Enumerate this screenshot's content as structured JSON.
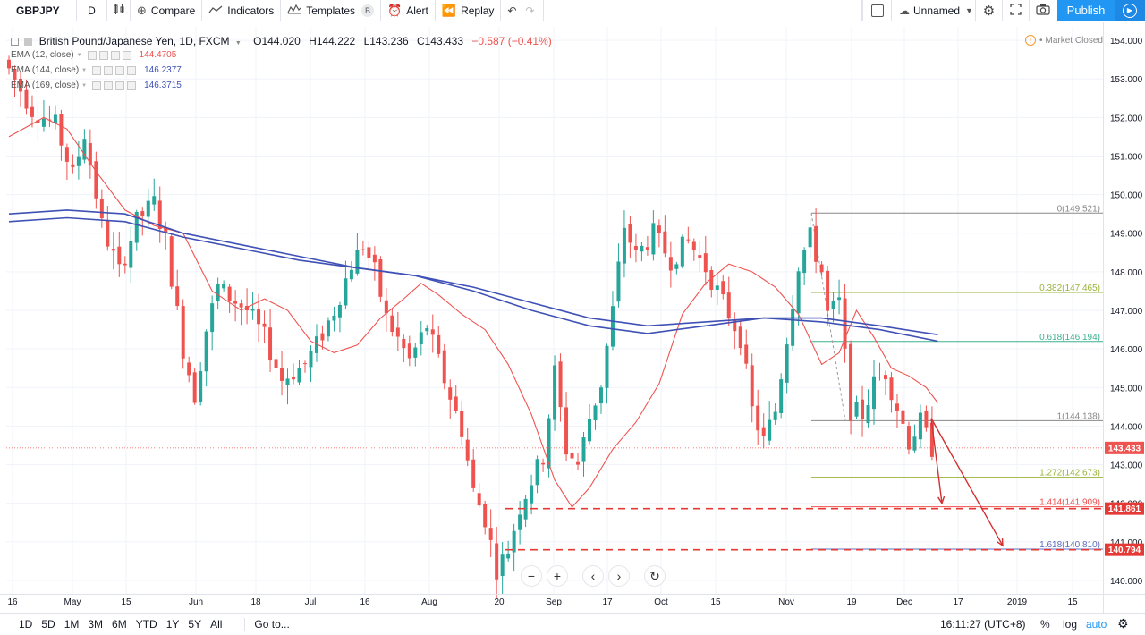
{
  "toolbar": {
    "symbol": "GBPJPY",
    "interval": "D",
    "compare": "Compare",
    "indicators": "Indicators",
    "templates": "Templates",
    "templates_badge": "B",
    "alert": "Alert",
    "replay": "Replay",
    "layout_name": "Unnamed",
    "publish": "Publish"
  },
  "legend": {
    "title": "British Pound/Japanese Yen, 1D, FXCM",
    "open": "O144.020",
    "high": "H144.222",
    "low": "L143.236",
    "close": "C143.433",
    "change": "−0.587 (−0.41%)",
    "market_status": "Market Closed"
  },
  "indicators": [
    {
      "label": "EMA (12, close)",
      "value": "144.4705",
      "color": "#ef5350"
    },
    {
      "label": "EMA (144, close)",
      "value": "146.2377",
      "color": "#3f51b5"
    },
    {
      "label": "EMA (169, close)",
      "value": "146.3715",
      "color": "#3f51b5"
    }
  ],
  "chart_data": {
    "type": "line",
    "symbol": "GBPJPY",
    "timeframe": "1D",
    "y_ticks": [
      "154.000",
      "153.000",
      "152.000",
      "151.000",
      "150.000",
      "149.000",
      "148.000",
      "147.000",
      "146.000",
      "145.000",
      "144.000",
      "143.000",
      "142.000",
      "141.000",
      "140.000"
    ],
    "ylim": [
      139.65,
      154.35
    ],
    "x_ticks": [
      "16",
      "May",
      "15",
      "Jun",
      "18",
      "Jul",
      "16",
      "Aug",
      "20",
      "Sep",
      "17",
      "Oct",
      "15",
      "Nov",
      "19",
      "Dec",
      "17",
      "2019",
      "15"
    ],
    "series": [
      {
        "name": "EMA (12, close)",
        "color": "#ef5350",
        "values": [
          [
            0,
            151.5
          ],
          [
            6,
            152.0
          ],
          [
            10,
            151.7
          ],
          [
            15,
            150.6
          ],
          [
            20,
            149.6
          ],
          [
            25,
            149.2
          ],
          [
            30,
            149.0
          ],
          [
            35,
            147.5
          ],
          [
            40,
            147.0
          ],
          [
            44,
            147.3
          ],
          [
            48,
            147.0
          ],
          [
            52,
            146.2
          ],
          [
            56,
            145.9
          ],
          [
            60,
            146.1
          ],
          [
            64,
            146.8
          ],
          [
            68,
            147.3
          ],
          [
            71,
            147.7
          ],
          [
            74,
            147.4
          ],
          [
            78,
            146.9
          ],
          [
            82,
            146.5
          ],
          [
            86,
            145.6
          ],
          [
            90,
            144.3
          ],
          [
            94,
            142.6
          ],
          [
            97,
            141.9
          ],
          [
            100,
            142.4
          ],
          [
            104,
            143.4
          ],
          [
            108,
            144.1
          ],
          [
            112,
            145.1
          ],
          [
            116,
            146.9
          ],
          [
            120,
            147.7
          ],
          [
            124,
            148.2
          ],
          [
            128,
            148.0
          ],
          [
            132,
            147.6
          ],
          [
            136,
            146.9
          ],
          [
            140,
            145.6
          ],
          [
            143,
            145.9
          ],
          [
            146,
            147.0
          ],
          [
            149,
            146.3
          ],
          [
            152,
            145.5
          ],
          [
            155,
            145.3
          ],
          [
            158,
            145.0
          ],
          [
            160,
            144.6
          ]
        ]
      },
      {
        "name": "EMA (144, close)",
        "color": "#3f51b5",
        "values": [
          [
            0,
            149.5
          ],
          [
            10,
            149.6
          ],
          [
            20,
            149.5
          ],
          [
            30,
            149.0
          ],
          [
            40,
            148.7
          ],
          [
            50,
            148.4
          ],
          [
            60,
            148.1
          ],
          [
            70,
            147.9
          ],
          [
            80,
            147.5
          ],
          [
            90,
            147.0
          ],
          [
            100,
            146.6
          ],
          [
            110,
            146.4
          ],
          [
            120,
            146.6
          ],
          [
            130,
            146.8
          ],
          [
            140,
            146.7
          ],
          [
            150,
            146.5
          ],
          [
            160,
            146.2
          ]
        ]
      },
      {
        "name": "EMA (169, close)",
        "color": "#3f51b5",
        "values": [
          [
            0,
            149.3
          ],
          [
            10,
            149.4
          ],
          [
            20,
            149.3
          ],
          [
            30,
            148.9
          ],
          [
            40,
            148.6
          ],
          [
            50,
            148.3
          ],
          [
            60,
            148.1
          ],
          [
            70,
            147.9
          ],
          [
            80,
            147.6
          ],
          [
            90,
            147.2
          ],
          [
            100,
            146.8
          ],
          [
            110,
            146.6
          ],
          [
            120,
            146.7
          ],
          [
            130,
            146.8
          ],
          [
            140,
            146.8
          ],
          [
            150,
            146.6
          ],
          [
            160,
            146.37
          ]
        ]
      }
    ],
    "fibonacci": [
      {
        "label": "0(149.521)",
        "level": 149.521,
        "color": "#888888"
      },
      {
        "label": "0.382(147.465)",
        "level": 147.465,
        "color": "#9ab33a"
      },
      {
        "label": "0.618(146.194)",
        "level": 146.194,
        "color": "#3bb08e"
      },
      {
        "label": "1(144.138)",
        "level": 144.138,
        "color": "#888888"
      },
      {
        "label": "1.272(142.673)",
        "level": 142.673,
        "color": "#9ab33a"
      },
      {
        "label": "1.414(141.909)",
        "level": 141.909,
        "color": "#ef5350"
      },
      {
        "label": "1.618(140.810)",
        "level": 140.81,
        "color": "#5c6bc0"
      }
    ],
    "price_labels": [
      {
        "text": "143.433",
        "value": 143.433,
        "color": "#ef5350"
      },
      {
        "text": "141.861",
        "value": 141.861,
        "color": "#e53935"
      },
      {
        "text": "140.794",
        "value": 140.794,
        "color": "#e53935"
      }
    ],
    "last_price": 143.433,
    "support_lines": [
      141.861,
      140.794
    ]
  },
  "bottom": {
    "ranges": [
      "1D",
      "5D",
      "1M",
      "3M",
      "6M",
      "YTD",
      "1Y",
      "5Y",
      "All"
    ],
    "goto": "Go to...",
    "time": "16:11:27 (UTC+8)",
    "pct": "%",
    "log": "log",
    "auto": "auto"
  }
}
